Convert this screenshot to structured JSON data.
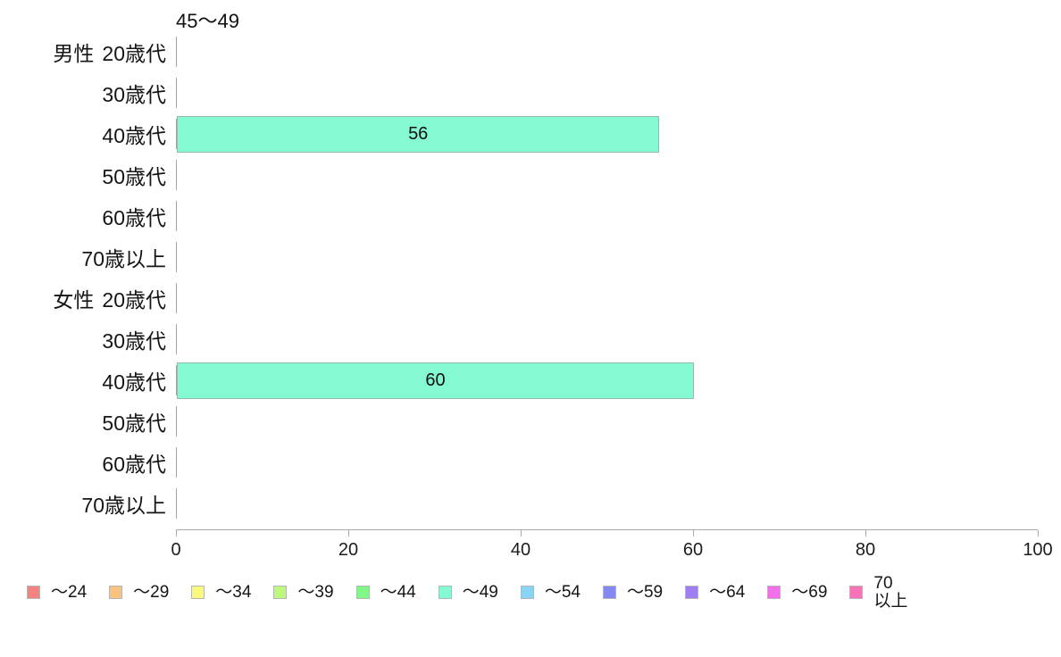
{
  "chart_data": {
    "type": "bar",
    "orientation": "horizontal",
    "title": "45〜49",
    "categories": [
      "男性 20歳代",
      "30歳代",
      "40歳代",
      "50歳代",
      "60歳代",
      "70歳以上",
      "女性 20歳代",
      "30歳代",
      "40歳代",
      "50歳代",
      "60歳代",
      "70歳以上"
    ],
    "values": [
      null,
      null,
      56,
      null,
      null,
      null,
      null,
      null,
      60,
      null,
      null,
      null
    ],
    "series_name": "〜49",
    "bar_color": "#85F9D1",
    "xlim": [
      0,
      100
    ],
    "x_ticks": [
      0,
      20,
      40,
      60,
      80,
      100
    ],
    "grid": false,
    "legend_position": "bottom",
    "value_labels": "centered-in-bar"
  },
  "title": "45〜49",
  "rows": [
    {
      "prefix": "男性",
      "label": "20歳代",
      "value": null
    },
    {
      "prefix": "",
      "label": "30歳代",
      "value": null
    },
    {
      "prefix": "",
      "label": "40歳代",
      "value": 56
    },
    {
      "prefix": "",
      "label": "50歳代",
      "value": null
    },
    {
      "prefix": "",
      "label": "60歳代",
      "value": null
    },
    {
      "prefix": "",
      "label": "70歳以上",
      "value": null
    },
    {
      "prefix": "女性",
      "label": "20歳代",
      "value": null
    },
    {
      "prefix": "",
      "label": "30歳代",
      "value": null
    },
    {
      "prefix": "",
      "label": "40歳代",
      "value": 60
    },
    {
      "prefix": "",
      "label": "50歳代",
      "value": null
    },
    {
      "prefix": "",
      "label": "60歳代",
      "value": null
    },
    {
      "prefix": "",
      "label": "70歳以上",
      "value": null
    }
  ],
  "x_axis": {
    "ticks": [
      "0",
      "20",
      "40",
      "60",
      "80",
      "100"
    ]
  },
  "legend": {
    "items": [
      {
        "label": "〜24",
        "color": "#F5837F"
      },
      {
        "label": "〜29",
        "color": "#F8C37E"
      },
      {
        "label": "〜34",
        "color": "#FAF87D"
      },
      {
        "label": "〜39",
        "color": "#BDF87D"
      },
      {
        "label": "〜44",
        "color": "#81F787"
      },
      {
        "label": "〜49",
        "color": "#85F9D1"
      },
      {
        "label": "〜54",
        "color": "#89D4F5"
      },
      {
        "label": "〜59",
        "color": "#8389F3"
      },
      {
        "label": "〜64",
        "color": "#9F7DF3"
      },
      {
        "label": "〜69",
        "color": "#F16FE9"
      },
      {
        "label": "70\n以上",
        "color": "#F573B6"
      }
    ]
  }
}
